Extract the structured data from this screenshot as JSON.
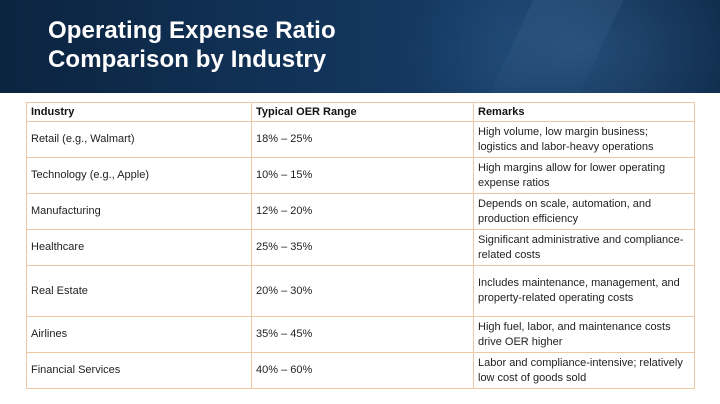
{
  "title": {
    "line1": "Operating Expense Ratio",
    "line2": "Comparison by Industry"
  },
  "table": {
    "headers": [
      "Industry",
      "Typical OER Range",
      "Remarks"
    ],
    "rows": [
      {
        "industry": "Retail (e.g., Walmart)",
        "range": "18% – 25%",
        "remarks": "High volume, low margin business; logistics and labor-heavy operations"
      },
      {
        "industry": "Technology (e.g., Apple)",
        "range": "10% – 15%",
        "remarks": "High margins allow for lower operating expense ratios"
      },
      {
        "industry": "Manufacturing",
        "range": "12% – 20%",
        "remarks": "Depends on scale, automation, and production efficiency"
      },
      {
        "industry": "Healthcare",
        "range": "25% – 35%",
        "remarks": "Significant administrative and compliance-related costs"
      },
      {
        "industry": "Real Estate",
        "range": "20% – 30%",
        "remarks": "Includes maintenance, management, and property-related operating costs"
      },
      {
        "industry": "Airlines",
        "range": "35% – 45%",
        "remarks": "High fuel, labor, and maintenance costs drive OER higher"
      },
      {
        "industry": "Financial Services",
        "range": "40% – 60%",
        "remarks": "Labor and compliance-intensive; relatively low cost of goods sold"
      }
    ]
  },
  "colors": {
    "header_bg": "#12345a",
    "title_text": "#ffffff",
    "table_border": "#f0c7a4"
  }
}
